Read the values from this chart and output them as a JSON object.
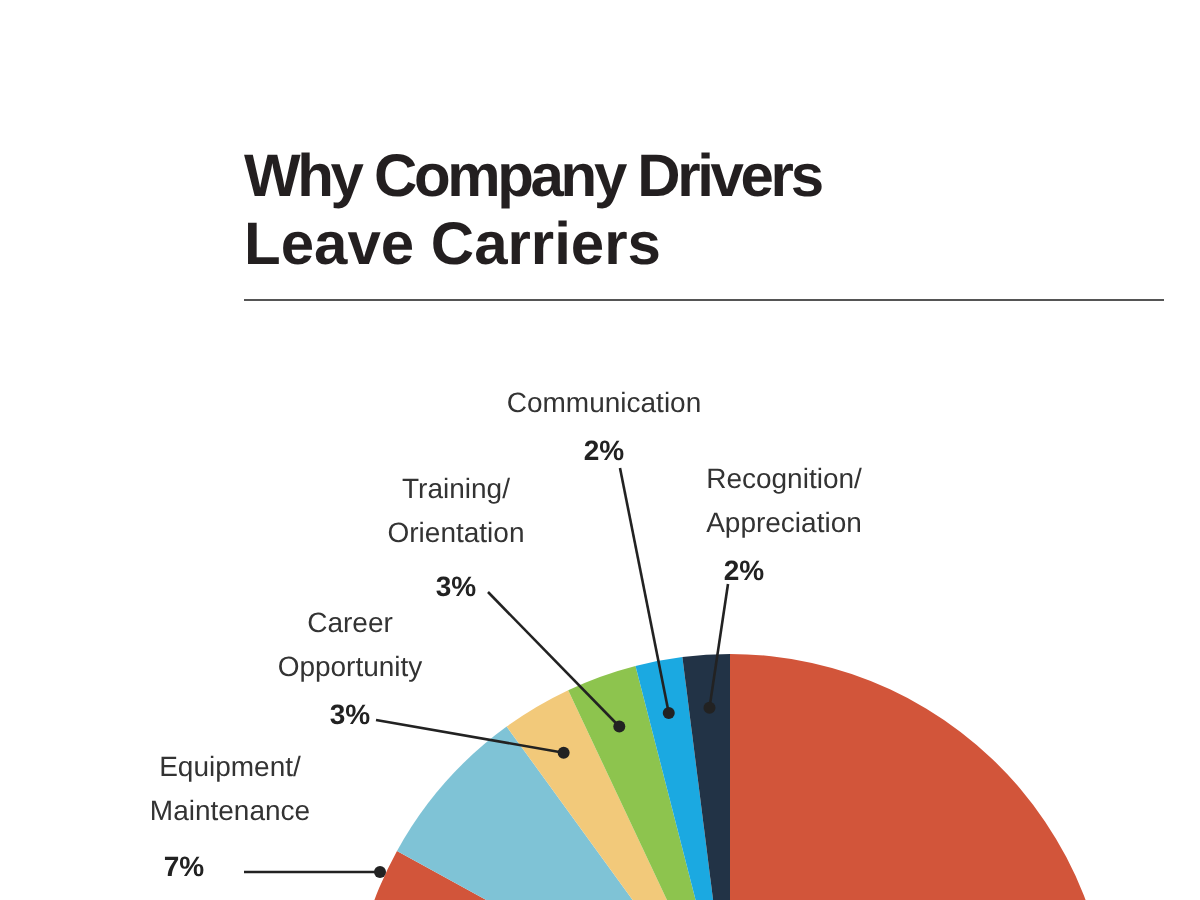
{
  "chart_data": {
    "type": "pie",
    "title": "Why Company Drivers Leave Carriers",
    "categories": [
      null,
      "Equipment/ Maintenance",
      "Career Opportunity",
      "Training/ Orientation",
      "Communication",
      "Recognition/ Appreciation"
    ],
    "values": [
      83,
      7,
      3,
      3,
      2,
      2
    ],
    "colors": [
      "#d2553a",
      "#7fc3d6",
      "#f2c97a",
      "#8dc44e",
      "#1ba9e1",
      "#223346"
    ],
    "value_labels": [
      null,
      "7%",
      "3%",
      "3%",
      "2%",
      "2%"
    ]
  }
}
